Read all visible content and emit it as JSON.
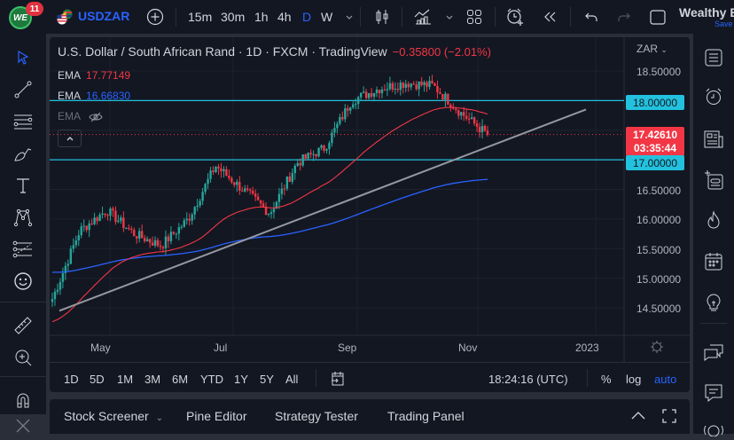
{
  "topbar": {
    "logo_text": "WE",
    "notification_count": "11",
    "symbol": "USDZAR",
    "timeframes": [
      {
        "label": "15m",
        "active": false
      },
      {
        "label": "30m",
        "active": false
      },
      {
        "label": "1h",
        "active": false
      },
      {
        "label": "4h",
        "active": false
      },
      {
        "label": "D",
        "active": true
      },
      {
        "label": "W",
        "active": false
      }
    ],
    "account_name": "Wealthy E",
    "save_label": "Save"
  },
  "legend": {
    "title": "U.S. Dollar / South African Rand · 1D · FXCM · TradingView",
    "change": "−0.35800 (−2.01%)",
    "ema": [
      {
        "label": "EMA",
        "value": "17.77149",
        "color": "#f23645"
      },
      {
        "label": "EMA",
        "value": "16.66830",
        "color": "#2962ff"
      },
      {
        "label": "EMA",
        "value": "",
        "hidden": true
      }
    ]
  },
  "price_axis": {
    "currency": "ZAR",
    "labels": [
      "18.50000",
      "16.50000",
      "16.00000",
      "15.50000",
      "15.00000",
      "14.50000"
    ],
    "hlines": [
      {
        "label": "18.00000",
        "value": 18.0,
        "color": "#22c1dd"
      },
      {
        "label": "17.00000",
        "value": 17.0,
        "color": "#22c1dd"
      }
    ],
    "current_price": "17.42610",
    "countdown": "03:35:44"
  },
  "time_axis": {
    "labels": [
      "May",
      "Jul",
      "Sep",
      "Nov",
      "2023"
    ]
  },
  "rangebar": {
    "ranges": [
      "1D",
      "5D",
      "1M",
      "3M",
      "6M",
      "YTD",
      "1Y",
      "5Y",
      "All"
    ],
    "clock": "18:24:16 (UTC)",
    "percent_label": "%",
    "log_label": "log",
    "auto_label": "auto"
  },
  "bottom_panel": {
    "tabs": [
      "Stock Screener",
      "Pine Editor",
      "Strategy Tester",
      "Trading Panel"
    ]
  },
  "colors": {
    "up": "#26a69a",
    "down": "#f23645",
    "ema_fast": "#f23645",
    "ema_slow": "#2962ff",
    "trendline": "#9598a1",
    "hline": "#22c1dd",
    "accent": "#2962ff"
  },
  "chart_data": {
    "type": "candlestick",
    "title": "U.S. Dollar / South African Rand · 1D · FXCM",
    "ylim": [
      14.2,
      18.75
    ],
    "y_ticks": [
      14.5,
      15.0,
      15.5,
      16.0,
      16.5,
      17.0,
      17.5,
      18.0,
      18.5
    ],
    "x_ticks": [
      "May",
      "Jul",
      "Sep",
      "Nov",
      "2023"
    ],
    "approx_closes": [
      {
        "period": "early Apr",
        "value": 14.65
      },
      {
        "period": "mid Apr",
        "value": 15.8
      },
      {
        "period": "late Apr",
        "value": 16.15
      },
      {
        "period": "mid May",
        "value": 15.75
      },
      {
        "period": "late May",
        "value": 15.55
      },
      {
        "period": "mid Jun",
        "value": 16.0
      },
      {
        "period": "early Jul",
        "value": 16.9
      },
      {
        "period": "late Jul",
        "value": 16.5
      },
      {
        "period": "early Aug",
        "value": 16.1
      },
      {
        "period": "mid Aug",
        "value": 16.95
      },
      {
        "period": "early Sep",
        "value": 17.2
      },
      {
        "period": "late Sep",
        "value": 18.0
      },
      {
        "period": "early Oct",
        "value": 18.2
      },
      {
        "period": "mid Oct",
        "value": 18.3
      },
      {
        "period": "late Oct",
        "value": 18.25
      },
      {
        "period": "early Nov",
        "value": 17.8
      },
      {
        "period": "current",
        "value": 17.4261
      }
    ],
    "ema_fast_last": 17.77149,
    "ema_slow_last": 16.6683,
    "horizontal_levels": [
      18.0,
      17.0
    ],
    "trendline": {
      "start": {
        "period": "early Apr",
        "value": 14.45
      },
      "end": {
        "period": "mid Dec",
        "value": 17.85
      }
    }
  }
}
